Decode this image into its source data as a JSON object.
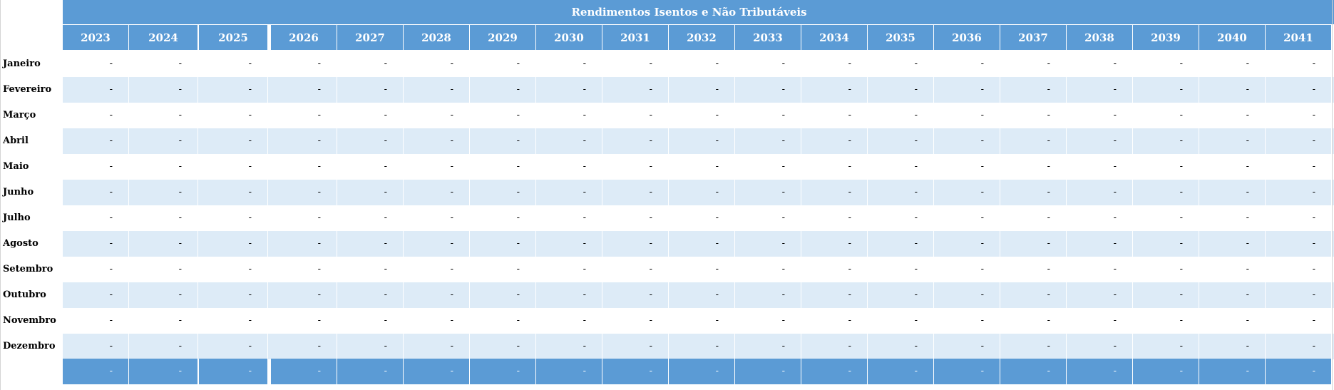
{
  "table": {
    "title": "Rendimentos Isentos e Não Tributáveis",
    "years": [
      "2023",
      "2024",
      "2025",
      "2026",
      "2027",
      "2028",
      "2029",
      "2030",
      "2031",
      "2032",
      "2033",
      "2034",
      "2035",
      "2036",
      "2037",
      "2038",
      "2039",
      "2040",
      "2041"
    ],
    "months": [
      "Janeiro",
      "Fevereiro",
      "Março",
      "Abril",
      "Maio",
      "Junho",
      "Julho",
      "Agosto",
      "Setembro",
      "Outubro",
      "Novembro",
      "Dezembro"
    ],
    "cell_value": "-",
    "total_value": "-"
  },
  "colors": {
    "header": "#5b9bd5",
    "band": "#ddebf7",
    "header_text": "#ffffff"
  }
}
